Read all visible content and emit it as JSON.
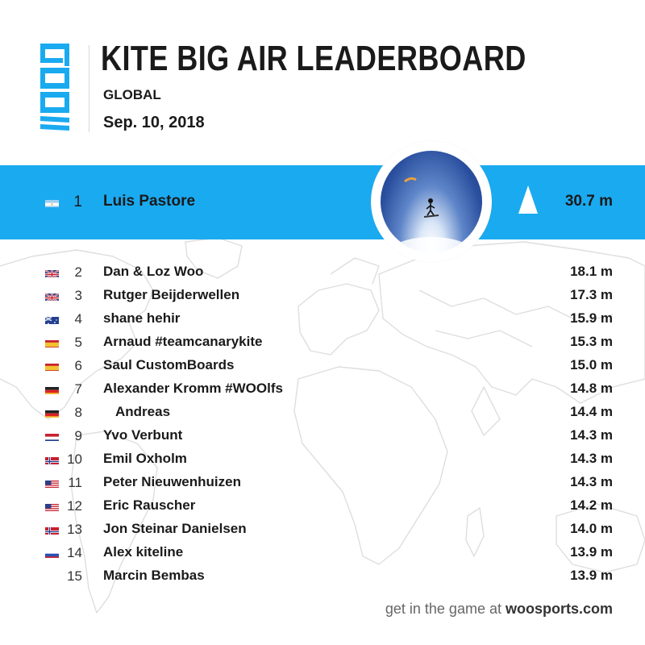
{
  "header": {
    "title": "KITE BIG AIR LEADERBOARD",
    "subtitle": "GLOBAL",
    "date": "Sep. 10, 2018"
  },
  "colors": {
    "accent": "#1aaaf0",
    "text": "#1a1a1a",
    "map": "#dcdcdc"
  },
  "leader": {
    "rank": "1",
    "name": "Luis Pastore",
    "value": "30.7 m",
    "flag": "AR",
    "trend_icon": "up-arrow-icon"
  },
  "entries": [
    {
      "rank": "2",
      "name": "Dan & Loz Woo",
      "value": "18.1 m",
      "flag": "GB"
    },
    {
      "rank": "3",
      "name": "Rutger Beijderwellen",
      "value": "17.3 m",
      "flag": "GB"
    },
    {
      "rank": "4",
      "name": "shane hehir",
      "value": "15.9 m",
      "flag": "AU"
    },
    {
      "rank": "5",
      "name": "Arnaud #teamcanarykite",
      "value": "15.3 m",
      "flag": "ES"
    },
    {
      "rank": "6",
      "name": "Saul CustomBoards",
      "value": "15.0 m",
      "flag": "ES"
    },
    {
      "rank": "7",
      "name": "Alexander Kromm #WOOlfs",
      "value": "14.8 m",
      "flag": "DE"
    },
    {
      "rank": "8",
      "name": "Andreas",
      "value": "14.4 m",
      "flag": "DE"
    },
    {
      "rank": "9",
      "name": "Yvo Verbunt",
      "value": "14.3 m",
      "flag": "NL"
    },
    {
      "rank": "10",
      "name": "Emil Oxholm",
      "value": "14.3 m",
      "flag": "NO"
    },
    {
      "rank": "11",
      "name": "Peter Nieuwenhuizen",
      "value": "14.3 m",
      "flag": "US"
    },
    {
      "rank": "12",
      "name": "Eric Rauscher",
      "value": "14.2 m",
      "flag": "US"
    },
    {
      "rank": "13",
      "name": "Jon Steinar Danielsen",
      "value": "14.0 m",
      "flag": "NO"
    },
    {
      "rank": "14",
      "name": "Alex kiteline",
      "value": "13.9 m",
      "flag": "RU"
    },
    {
      "rank": "15",
      "name": "Marcin Bembas",
      "value": "13.9 m",
      "flag": ""
    }
  ],
  "footer": {
    "prefix": "get in the game at ",
    "site": "woosports.com"
  }
}
